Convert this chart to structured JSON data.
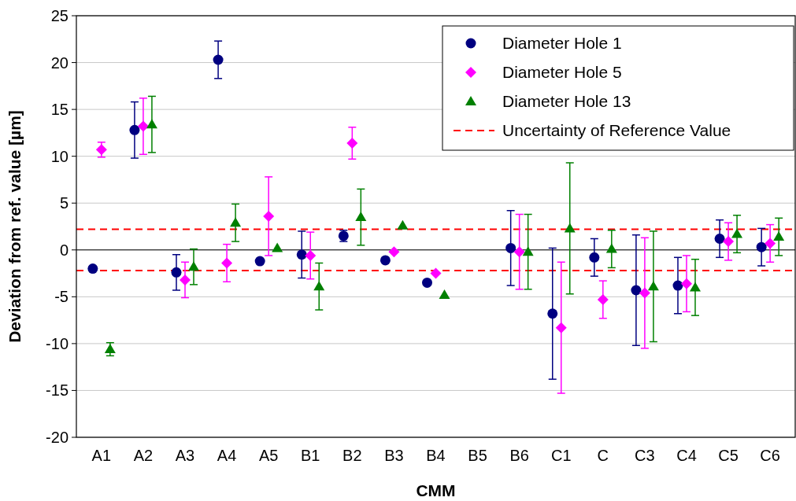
{
  "chart_data": {
    "type": "scatter",
    "xlabel": "CMM",
    "ylabel": "Deviation from ref. value [µm]",
    "categories": [
      "A1",
      "A2",
      "A3",
      "A4",
      "A5",
      "B1",
      "B2",
      "B3",
      "B4",
      "B5",
      "B6",
      "C1",
      "C",
      "C3",
      "C4",
      "C5",
      "C6"
    ],
    "series": [
      {
        "name": "Diameter Hole 1",
        "color": "#000080",
        "marker": "circle",
        "values": [
          -2.0,
          12.8,
          -2.4,
          20.3,
          -1.2,
          -0.5,
          1.5,
          -1.1,
          -3.5,
          null,
          0.2,
          -6.8,
          -0.8,
          -4.3,
          -3.8,
          1.2,
          0.3
        ],
        "errors": [
          0.2,
          3,
          1.9,
          2,
          null,
          2.5,
          0.6,
          null,
          null,
          null,
          4,
          7,
          2,
          5.9,
          3,
          2,
          2
        ]
      },
      {
        "name": "Diameter Hole 5",
        "color": "#ff00ff",
        "marker": "diamond",
        "values": [
          10.7,
          13.2,
          -3.2,
          -1.4,
          3.6,
          -0.6,
          11.4,
          -0.2,
          -2.5,
          null,
          -0.2,
          -8.3,
          -5.3,
          -4.6,
          -3.6,
          0.9,
          0.7
        ],
        "errors": [
          0.8,
          3,
          1.9,
          2,
          4.2,
          2.5,
          1.7,
          null,
          null,
          null,
          4,
          7,
          2,
          5.9,
          3,
          2,
          2
        ]
      },
      {
        "name": "Diameter Hole 13",
        "color": "#008000",
        "marker": "triangle",
        "values": [
          -10.6,
          13.4,
          -1.8,
          2.9,
          0.2,
          -3.9,
          3.5,
          2.6,
          -4.8,
          null,
          -0.2,
          2.3,
          0.1,
          -3.9,
          -4.0,
          1.7,
          1.4
        ],
        "errors": [
          0.7,
          3,
          1.9,
          2,
          null,
          2.5,
          3,
          null,
          null,
          null,
          4,
          7,
          2,
          5.9,
          3,
          2,
          2
        ]
      }
    ],
    "ref_lines": [
      {
        "axis": "y",
        "value": 2.2,
        "label": "Uncertainty of Reference Value",
        "color": "#ff0000",
        "line_style": "dashed"
      },
      {
        "axis": "y",
        "value": -2.2,
        "color": "#ff0000",
        "line_style": "dashed"
      }
    ],
    "ylim": [
      -20,
      25
    ],
    "yticks": [
      -20,
      -15,
      -10,
      -5,
      0,
      5,
      10,
      15,
      20,
      25
    ],
    "grid": "y",
    "legend": "top right"
  }
}
